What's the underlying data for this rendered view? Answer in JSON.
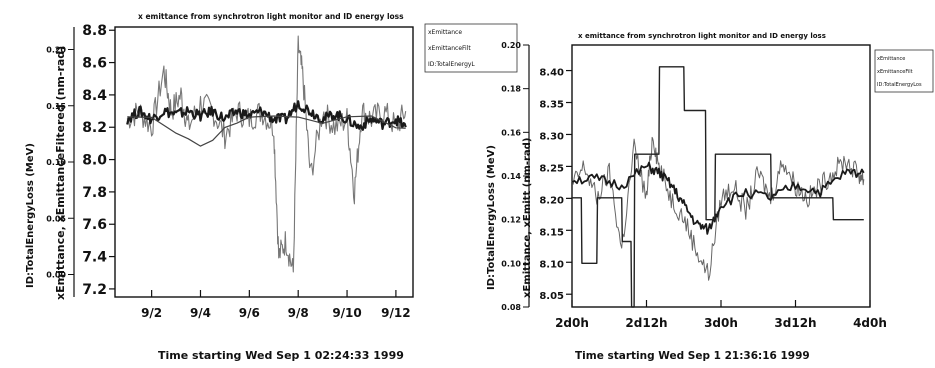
{
  "chart_data": [
    {
      "type": "line",
      "title": "x emittance from synchrotron light monitor and ID energy loss",
      "legend": [
        "xEmittance",
        "xEmittanceFilt",
        "ID:TotalEnergyL"
      ],
      "legend_placement": "top-right, outside",
      "left_axis": {
        "label": "ID:TotalEnergyLoss (MeV)",
        "ticks": [
          "0.00",
          "0.05",
          "0.10",
          "0.15",
          "0.20"
        ],
        "range": [
          -0.02,
          0.22
        ]
      },
      "right_axis": {
        "label": "xEmittance, xEmittanceFiltered (nm-rad)",
        "ticks": [
          "7.2",
          "7.4",
          "7.6",
          "7.8",
          "8.0",
          "8.2",
          "8.4",
          "8.6",
          "8.8"
        ],
        "range": [
          7.15,
          8.82
        ]
      },
      "x_axis": {
        "ticks": [
          "9/2",
          "9/4",
          "9/6",
          "9/8",
          "9/10",
          "9/12"
        ],
        "range_days": [
          0.5,
          12.7
        ]
      },
      "xlabel": "Time starting Wed Sep  1 02:24:33 1999",
      "grid": false,
      "series": [
        {
          "name": "xEmittance",
          "x": [
            1,
            1.5,
            2,
            2.5,
            2.8,
            3.2,
            3.5,
            4,
            4.5,
            5,
            5.5,
            6,
            6.5,
            7,
            7.2,
            7.5,
            7.8,
            8,
            8.2,
            8.5,
            9,
            9.5,
            10,
            10.3,
            10.6,
            11,
            11.5,
            12,
            12.4
          ],
          "y": [
            8.25,
            8.3,
            8.2,
            8.55,
            8.3,
            8.4,
            8.2,
            8.35,
            8.3,
            8.15,
            8.3,
            8.25,
            8.3,
            8.2,
            7.4,
            7.5,
            7.3,
            8.7,
            8.5,
            7.9,
            8.3,
            8.2,
            8.25,
            7.8,
            8.3,
            8.25,
            8.3,
            8.2,
            8.3
          ]
        },
        {
          "name": "xEmittanceFilt",
          "x": [
            1,
            1.5,
            2,
            2.5,
            3,
            3.5,
            4,
            4.5,
            5,
            5.5,
            6,
            6.5,
            7,
            7.5,
            8,
            8.5,
            9,
            9.5,
            10,
            10.5,
            11,
            11.5,
            12,
            12.4
          ],
          "y": [
            8.25,
            8.3,
            8.25,
            8.3,
            8.28,
            8.3,
            8.27,
            8.3,
            8.25,
            8.3,
            8.27,
            8.3,
            8.25,
            8.25,
            8.35,
            8.3,
            8.25,
            8.28,
            8.25,
            8.2,
            8.25,
            8.22,
            8.25,
            8.2
          ]
        },
        {
          "name": "ID:TotalEnergyL",
          "x": [
            1,
            2,
            3,
            3.5,
            4,
            4.5,
            5,
            5.5,
            6,
            7,
            8,
            9,
            10,
            11,
            12,
            12.4
          ],
          "y": [
            0.14,
            0.14,
            0.125,
            0.12,
            0.115,
            0.12,
            0.13,
            0.135,
            0.14,
            0.14,
            0.14,
            0.135,
            0.14,
            0.14,
            0.13,
            0.13
          ]
        }
      ]
    },
    {
      "type": "line",
      "title": "x emittance from synchrotron light monitor and ID energy loss",
      "legend": [
        "xEmittance",
        "xEmittanceFilt",
        "ID:TotalEnergyLos"
      ],
      "legend_placement": "top-right, outside",
      "left_axis": {
        "label": "ID:TotalEnergyLoss (MeV)",
        "ticks": [
          "0.08",
          "0.10",
          "0.12",
          "0.14",
          "0.16",
          "0.18",
          "0.20"
        ],
        "range": [
          0.08,
          0.2
        ]
      },
      "right_axis": {
        "label": "xEmittance, xEmitt (nm-rad)",
        "ticks": [
          "8.05",
          "8.10",
          "8.15",
          "8.20",
          "8.25",
          "8.30",
          "8.35",
          "8.40"
        ],
        "range": [
          8.03,
          8.44
        ]
      },
      "x_axis": {
        "ticks": [
          "2d0h",
          "2d12h",
          "3d0h",
          "3d12h",
          "4d0h"
        ],
        "range_hours": [
          48,
          96
        ]
      },
      "xlabel": "Time starting Wed Sep  1 21:36:16 1999",
      "grid": false,
      "series": [
        {
          "name": "xEmittance",
          "x": [
            48,
            50,
            52,
            54,
            56,
            58,
            60,
            61,
            62,
            64,
            66,
            68,
            70,
            72,
            74,
            76,
            78,
            80,
            82,
            84,
            86,
            88,
            90,
            92,
            94,
            95
          ],
          "y": [
            8.22,
            8.25,
            8.2,
            8.24,
            8.12,
            8.28,
            8.2,
            8.3,
            8.25,
            8.2,
            8.17,
            8.12,
            8.08,
            8.2,
            8.22,
            8.18,
            8.24,
            8.2,
            8.26,
            8.22,
            8.2,
            8.22,
            8.24,
            8.26,
            8.24,
            8.23
          ]
        },
        {
          "name": "xEmittanceFilt",
          "x": [
            48,
            52,
            56,
            60,
            62,
            64,
            66,
            68,
            70,
            72,
            76,
            80,
            84,
            88,
            92,
            95
          ],
          "y": [
            8.23,
            8.23,
            8.22,
            8.25,
            8.24,
            8.22,
            8.19,
            8.16,
            8.15,
            8.19,
            8.21,
            8.2,
            8.22,
            8.21,
            8.24,
            8.24
          ]
        },
        {
          "name": "ID:TotalEnergyLos",
          "x": [
            48,
            49.5,
            49.6,
            52,
            52.1,
            56,
            56.1,
            57.5,
            57.6,
            58,
            58.1,
            62,
            62.1,
            66,
            66.1,
            69.5,
            69.6,
            71,
            71.1,
            72.5,
            72.6,
            80,
            80.1,
            90,
            90.1,
            95
          ],
          "y": [
            0.13,
            0.13,
            0.1,
            0.1,
            0.13,
            0.13,
            0.11,
            0.11,
            0.08,
            0.08,
            0.15,
            0.15,
            0.19,
            0.19,
            0.17,
            0.17,
            0.12,
            0.12,
            0.15,
            0.15,
            0.15,
            0.15,
            0.13,
            0.13,
            0.12,
            0.12
          ]
        }
      ]
    }
  ]
}
